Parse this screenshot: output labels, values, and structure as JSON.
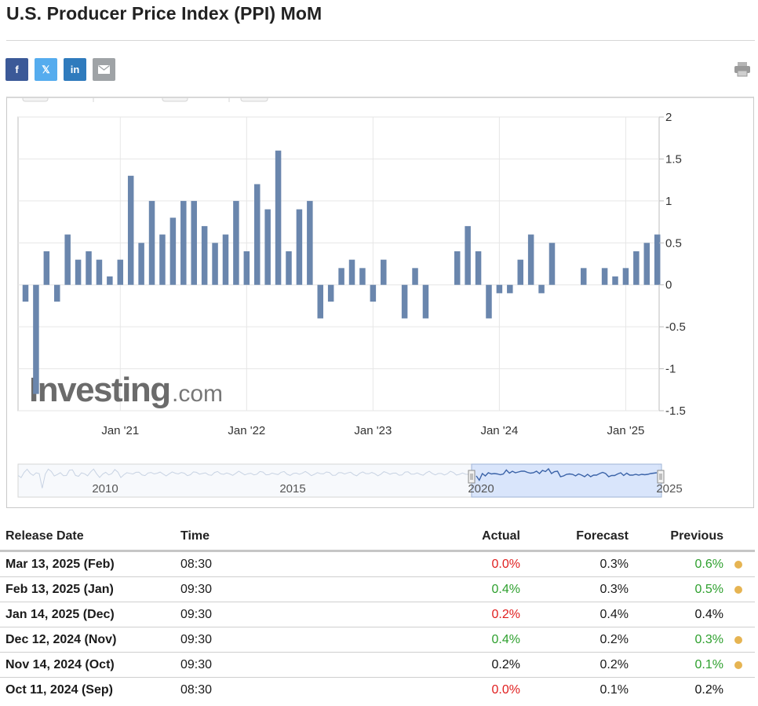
{
  "page": {
    "title": "U.S. Producer Price Index (PPI) MoM"
  },
  "share": {
    "facebook": "f",
    "twitter": "𝕏",
    "linkedin": "in",
    "email_icon": "envelope-icon",
    "print_icon": "printer-icon"
  },
  "colors": {
    "bar": "#6a86ad",
    "nav_line": "#3b63a8",
    "nav_fill": "#d3e2fa",
    "actual_worse": "#e01e1e",
    "actual_better": "#2ea02e",
    "revision_dot": "#e6b452"
  },
  "chart_data": {
    "type": "bar",
    "watermark": "Investing.com",
    "y_ticks": [
      "2",
      "1.5",
      "1",
      "0.5",
      "0",
      "-0.5",
      "-1",
      "-1.5"
    ],
    "ylim": [
      -1.5,
      2
    ],
    "x_ticks": [
      {
        "label": "Jan '21",
        "index": 9
      },
      {
        "label": "Jan '22",
        "index": 21
      },
      {
        "label": "Jan '23",
        "index": 33
      },
      {
        "label": "Jan '24",
        "index": 45
      },
      {
        "label": "Jan '25",
        "index": 57
      }
    ],
    "values": [
      -0.2,
      -1.3,
      0.4,
      -0.2,
      0.6,
      0.3,
      0.4,
      0.3,
      0.1,
      0.3,
      1.3,
      0.5,
      1.0,
      0.6,
      0.8,
      1.0,
      1.0,
      0.7,
      0.5,
      0.6,
      1.0,
      0.4,
      1.2,
      0.9,
      1.6,
      0.4,
      0.9,
      1.0,
      -0.4,
      -0.2,
      0.2,
      0.3,
      0.2,
      -0.2,
      0.3,
      0.0,
      -0.4,
      0.2,
      -0.4,
      0.0,
      0.0,
      0.4,
      0.7,
      0.4,
      -0.4,
      -0.1,
      -0.1,
      0.3,
      0.6,
      -0.1,
      0.5,
      0.0,
      0.0,
      0.2,
      0.0,
      0.2,
      0.1,
      0.2,
      0.4,
      0.5,
      0.6
    ],
    "navigator": {
      "labels": [
        "2010",
        "2015",
        "2020",
        "2025"
      ]
    }
  },
  "table": {
    "headers": {
      "release_date": "Release Date",
      "time": "Time",
      "actual": "Actual",
      "forecast": "Forecast",
      "previous": "Previous"
    },
    "rows": [
      {
        "date": "Mar 13, 2025 (Feb)",
        "time": "08:30",
        "actual": "0.0%",
        "actual_color": "red",
        "forecast": "0.3%",
        "previous": "0.6%",
        "previous_color": "green",
        "revised": true
      },
      {
        "date": "Feb 13, 2025 (Jan)",
        "time": "09:30",
        "actual": "0.4%",
        "actual_color": "green",
        "forecast": "0.3%",
        "previous": "0.5%",
        "previous_color": "green",
        "revised": true
      },
      {
        "date": "Jan 14, 2025 (Dec)",
        "time": "09:30",
        "actual": "0.2%",
        "actual_color": "red",
        "forecast": "0.4%",
        "previous": "0.4%",
        "previous_color": "black",
        "revised": false
      },
      {
        "date": "Dec 12, 2024 (Nov)",
        "time": "09:30",
        "actual": "0.4%",
        "actual_color": "green",
        "forecast": "0.2%",
        "previous": "0.3%",
        "previous_color": "green",
        "revised": true
      },
      {
        "date": "Nov 14, 2024 (Oct)",
        "time": "09:30",
        "actual": "0.2%",
        "actual_color": "black",
        "forecast": "0.2%",
        "previous": "0.1%",
        "previous_color": "green",
        "revised": true
      },
      {
        "date": "Oct 11, 2024 (Sep)",
        "time": "08:30",
        "actual": "0.0%",
        "actual_color": "red",
        "forecast": "0.1%",
        "previous": "0.2%",
        "previous_color": "black",
        "revised": false
      }
    ]
  }
}
